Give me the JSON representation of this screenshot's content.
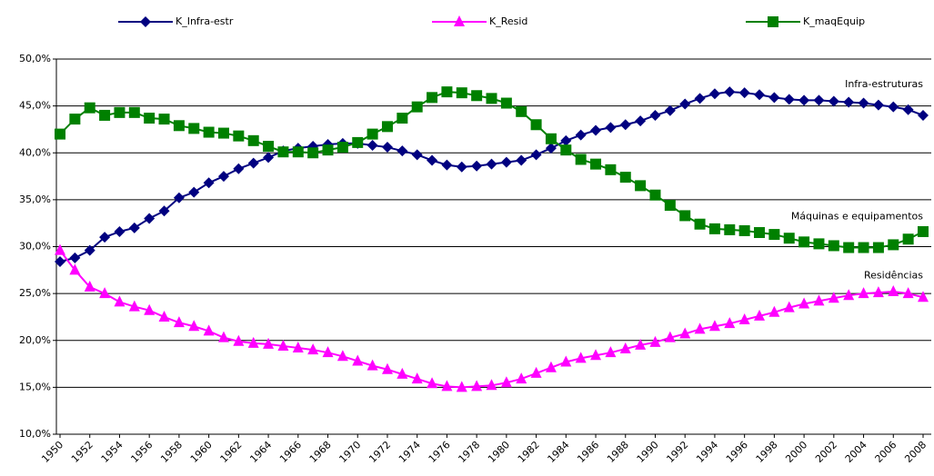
{
  "chart_data": {
    "type": "line",
    "x": [
      1950,
      1951,
      1952,
      1953,
      1954,
      1955,
      1956,
      1957,
      1958,
      1959,
      1960,
      1961,
      1962,
      1963,
      1964,
      1965,
      1966,
      1967,
      1968,
      1969,
      1970,
      1971,
      1972,
      1973,
      1974,
      1975,
      1976,
      1977,
      1978,
      1979,
      1980,
      1981,
      1982,
      1983,
      1984,
      1985,
      1986,
      1987,
      1988,
      1989,
      1990,
      1991,
      1992,
      1993,
      1994,
      1995,
      1996,
      1997,
      1998,
      1999,
      2000,
      2001,
      2002,
      2003,
      2004,
      2005,
      2006,
      2007,
      2008
    ],
    "series": [
      {
        "name": "K_Infra-estr",
        "color": "#000080",
        "marker": "diamond",
        "values": [
          28.4,
          28.8,
          29.6,
          31.0,
          31.6,
          32.0,
          33.0,
          33.8,
          35.2,
          35.8,
          36.8,
          37.5,
          38.3,
          38.9,
          39.5,
          40.2,
          40.5,
          40.7,
          40.9,
          41.0,
          41.0,
          40.8,
          40.6,
          40.2,
          39.8,
          39.2,
          38.7,
          38.5,
          38.6,
          38.8,
          39.0,
          39.2,
          39.8,
          40.5,
          41.3,
          41.9,
          42.4,
          42.7,
          43.0,
          43.4,
          44.0,
          44.5,
          45.2,
          45.8,
          46.3,
          46.5,
          46.4,
          46.2,
          45.9,
          45.7,
          45.6,
          45.6,
          45.5,
          45.4,
          45.3,
          45.1,
          44.9,
          44.6,
          44.0
        ]
      },
      {
        "name": "K_Resid",
        "color": "#ff00ff",
        "marker": "triangle",
        "values": [
          29.6,
          27.5,
          25.7,
          25.0,
          24.1,
          23.6,
          23.2,
          22.5,
          21.9,
          21.5,
          21.0,
          20.3,
          19.9,
          19.7,
          19.6,
          19.4,
          19.2,
          19.0,
          18.7,
          18.3,
          17.8,
          17.3,
          16.9,
          16.4,
          15.9,
          15.4,
          15.1,
          15.0,
          15.1,
          15.2,
          15.5,
          15.9,
          16.5,
          17.1,
          17.7,
          18.1,
          18.4,
          18.7,
          19.1,
          19.5,
          19.8,
          20.3,
          20.7,
          21.2,
          21.5,
          21.8,
          22.2,
          22.6,
          23.0,
          23.5,
          23.9,
          24.2,
          24.5,
          24.8,
          25.0,
          25.1,
          25.2,
          25.0,
          24.6
        ]
      },
      {
        "name": "K_maqEquip",
        "color": "#008000",
        "marker": "square",
        "values": [
          42.0,
          43.6,
          44.8,
          44.0,
          44.3,
          44.3,
          43.7,
          43.6,
          42.9,
          42.6,
          42.2,
          42.1,
          41.8,
          41.3,
          40.7,
          40.1,
          40.1,
          40.0,
          40.3,
          40.6,
          41.1,
          42.0,
          42.8,
          43.7,
          44.9,
          45.9,
          46.5,
          46.4,
          46.1,
          45.8,
          45.3,
          44.4,
          43.0,
          41.5,
          40.3,
          39.3,
          38.8,
          38.2,
          37.4,
          36.5,
          35.5,
          34.4,
          33.3,
          32.4,
          31.9,
          31.8,
          31.7,
          31.5,
          31.3,
          30.9,
          30.5,
          30.3,
          30.1,
          29.9,
          29.9,
          29.9,
          30.2,
          30.8,
          31.6
        ]
      }
    ],
    "xlim": [
      1950,
      2008
    ],
    "xticks": [
      1950,
      1952,
      1954,
      1956,
      1958,
      1960,
      1962,
      1964,
      1966,
      1968,
      1970,
      1972,
      1974,
      1976,
      1978,
      1980,
      1982,
      1984,
      1986,
      1988,
      1990,
      1992,
      1994,
      1996,
      1998,
      2000,
      2002,
      2004,
      2006,
      2008
    ],
    "ylim": [
      10,
      50
    ],
    "yticks": [
      {
        "value": 10,
        "label": "10,0%"
      },
      {
        "value": 15,
        "label": "15,0%"
      },
      {
        "value": 20,
        "label": "20,0%"
      },
      {
        "value": 25,
        "label": "25,0%"
      },
      {
        "value": 30,
        "label": "30,0%"
      },
      {
        "value": 35,
        "label": "35,0%"
      },
      {
        "value": 40,
        "label": "40,0%"
      },
      {
        "value": 45,
        "label": "45,0%"
      },
      {
        "value": 50,
        "label": "50,0%"
      }
    ],
    "grid": true,
    "legend": "top",
    "annotations": [
      {
        "text": "Infra-estruturas",
        "x": 2008,
        "y": 47.3
      },
      {
        "text": "Máquinas e equipamentos",
        "x": 2008,
        "y": 33.2
      },
      {
        "text": "Residências",
        "x": 2008,
        "y": 26.9
      }
    ]
  }
}
